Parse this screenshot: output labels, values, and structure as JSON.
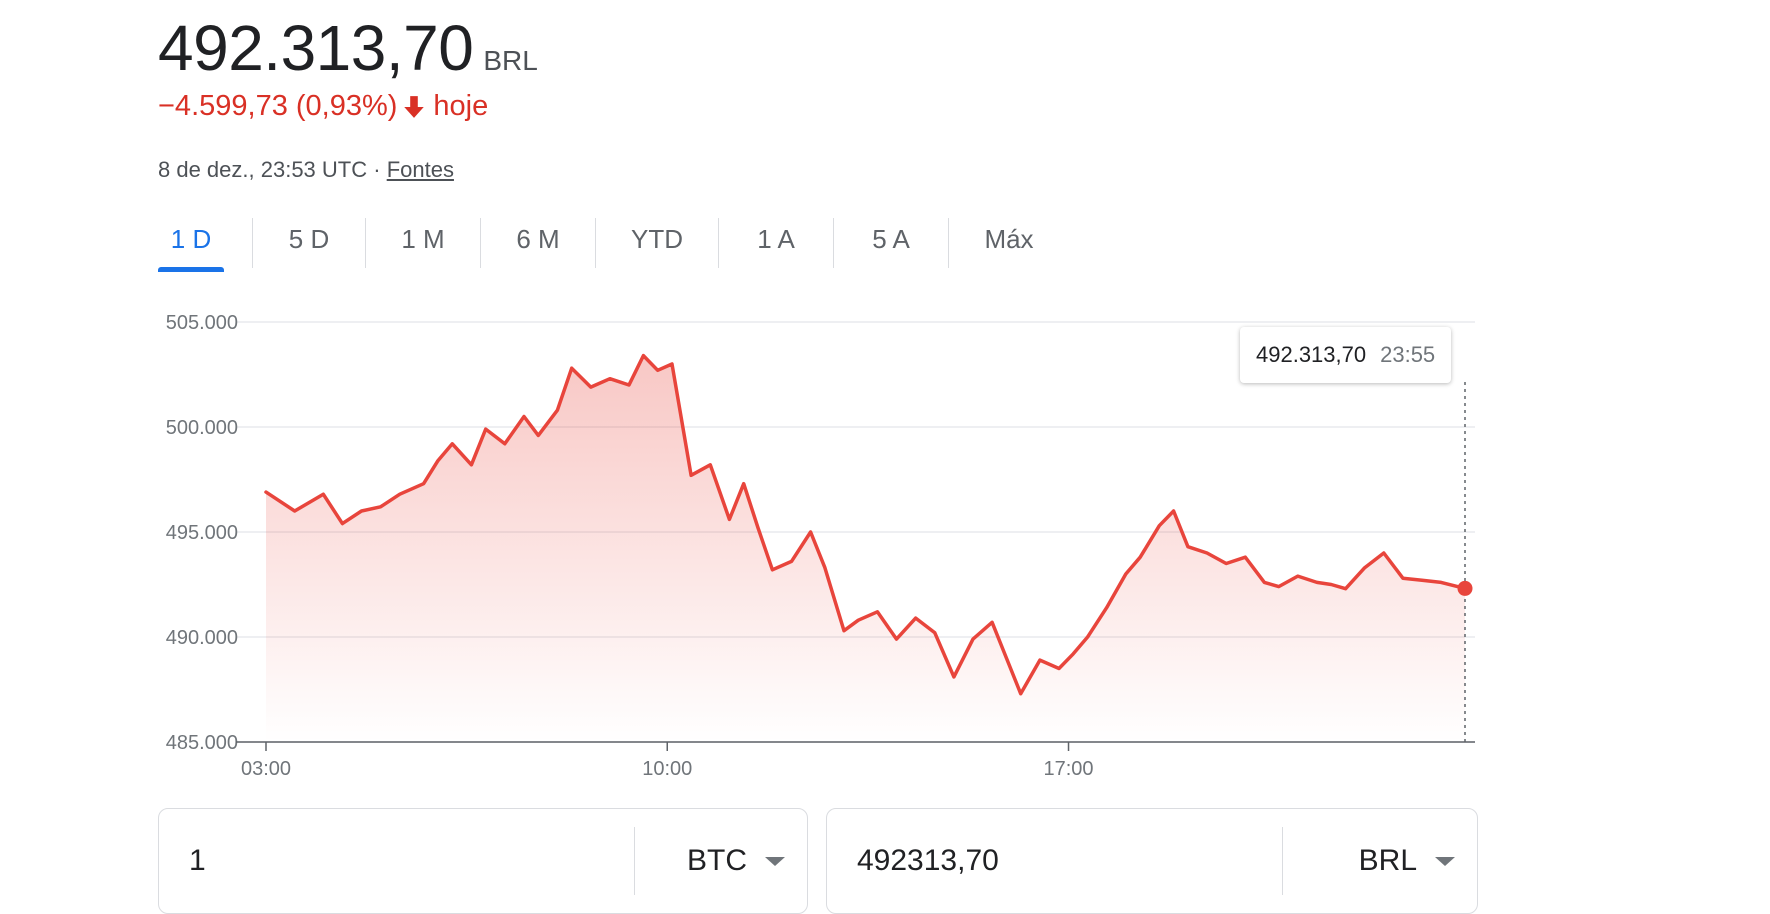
{
  "header": {
    "price": "492.313,70",
    "currency": "BRL",
    "change": "−4.599,73 (0,93%)",
    "change_period": "hoje",
    "timestamp": "8 de dez., 23:53 UTC ·",
    "sources_link": "Fontes"
  },
  "colors": {
    "negative": "#d93025",
    "line": "#e8453c",
    "accent": "#1a73e8"
  },
  "tabs": [
    {
      "label": "1 D",
      "active": true
    },
    {
      "label": "5 D"
    },
    {
      "label": "1 M"
    },
    {
      "label": "6 M"
    },
    {
      "label": "YTD"
    },
    {
      "label": "1 A"
    },
    {
      "label": "5 A"
    },
    {
      "label": "Máx"
    }
  ],
  "tooltip": {
    "value": "492.313,70",
    "time": "23:55"
  },
  "chart_data": {
    "type": "area",
    "title": "",
    "xlabel": "",
    "ylabel": "",
    "ylim": [
      485000,
      505000
    ],
    "xlim": [
      "03:00",
      "23:55"
    ],
    "y_ticks": [
      "505.000",
      "500.000",
      "495.000",
      "490.000",
      "485.000"
    ],
    "x_ticks": [
      "03:00",
      "10:00",
      "17:00"
    ],
    "grid": true,
    "legend": "none",
    "series": [
      {
        "x": [
          "03:00",
          "03:30",
          "04:00",
          "04:20",
          "04:40",
          "05:00",
          "05:20",
          "05:45",
          "06:00",
          "06:15",
          "06:35",
          "06:50",
          "07:10",
          "07:30",
          "07:45",
          "08:05",
          "08:20",
          "08:40",
          "09:00",
          "09:20",
          "09:35",
          "09:50",
          "10:05",
          "10:25",
          "10:45",
          "11:05",
          "11:20",
          "11:35",
          "11:50",
          "12:10",
          "12:30",
          "12:45",
          "13:05",
          "13:20",
          "13:40",
          "14:00",
          "14:20",
          "14:40",
          "15:00",
          "15:20",
          "15:40",
          "15:55",
          "16:10",
          "16:30",
          "16:50",
          "17:05",
          "17:20",
          "17:40",
          "18:00",
          "18:15",
          "18:35",
          "18:50",
          "19:05",
          "19:25",
          "19:45",
          "20:05",
          "20:25",
          "20:40",
          "21:00",
          "21:20",
          "21:35",
          "21:50",
          "22:10",
          "22:30",
          "22:50",
          "23:10",
          "23:30",
          "23:55"
        ],
        "y": [
          496900,
          496000,
          496800,
          495400,
          496000,
          496200,
          496800,
          497300,
          498400,
          499200,
          498200,
          499900,
          499200,
          500500,
          499600,
          500800,
          502800,
          501900,
          502300,
          502000,
          503400,
          502700,
          503000,
          497700,
          498200,
          495600,
          497300,
          495200,
          493200,
          493600,
          495000,
          493300,
          490300,
          490800,
          491200,
          489900,
          490900,
          490200,
          488100,
          489900,
          490700,
          489000,
          487300,
          488900,
          488500,
          489200,
          490000,
          491400,
          493000,
          493800,
          495300,
          496000,
          494300,
          494000,
          493500,
          493800,
          492600,
          492400,
          492900,
          492600,
          492500,
          492300,
          493300,
          494000,
          492800,
          492700,
          492600,
          492313.7
        ]
      }
    ]
  },
  "converter": {
    "left_amount": "1",
    "left_unit": "BTC",
    "right_amount": "492313,70",
    "right_unit": "BRL"
  }
}
